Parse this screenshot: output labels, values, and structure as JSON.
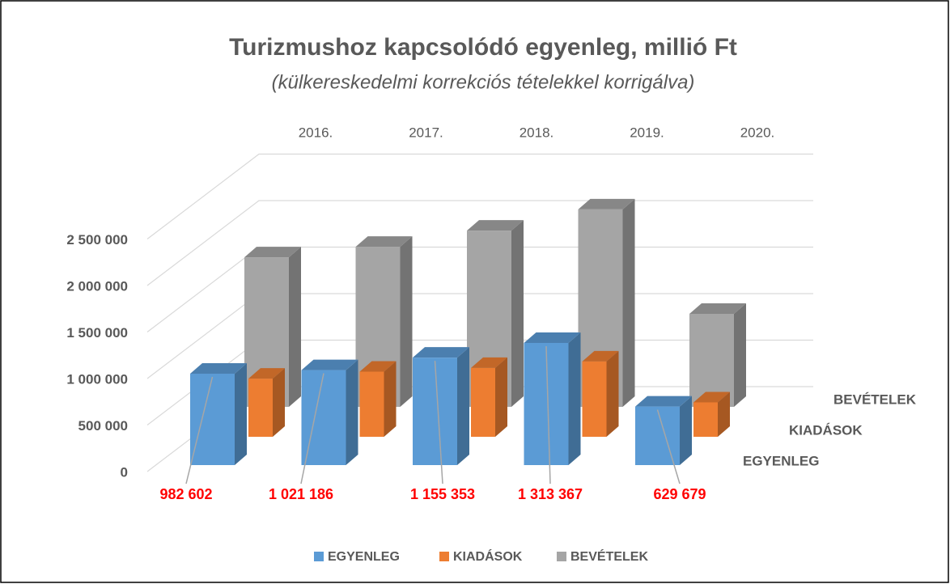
{
  "chart_data": {
    "type": "bar3d",
    "title": "Turizmushoz kapcsolódó egyenleg, millió Ft",
    "subtitle": "(külkereskedelmi korrekciós tételekkel korrigálva)",
    "categories": [
      "2016.",
      "2017.",
      "2018.",
      "2019.",
      "2020."
    ],
    "series": [
      {
        "name": "EGYENLEG",
        "color": "#5b9bd5",
        "values": [
          982602,
          1021186,
          1155353,
          1313367,
          629679
        ],
        "value_labels": [
          "982 602",
          "1 021 186",
          "1 155 353",
          "1 313 367",
          "629 679"
        ]
      },
      {
        "name": "KIADÁSOK",
        "color": "#ed7d31",
        "values": [
          625000,
          700000,
          740000,
          810000,
          370000
        ]
      },
      {
        "name": "BEVÉTELEK",
        "color": "#a5a5a5",
        "values": [
          1608000,
          1721000,
          1895000,
          2123000,
          1000000
        ]
      }
    ],
    "ylim": [
      0,
      2500000
    ],
    "yticks": [
      0,
      {
        "value": 500000,
        "label": "500 000"
      },
      {
        "value": 1000000,
        "label": "1 000 000"
      },
      {
        "value": 1500000,
        "label": "1 500 000"
      },
      {
        "value": 2000000,
        "label": "2 000 000"
      },
      {
        "value": 2500000,
        "label": "2 500 000"
      }
    ],
    "grid": true,
    "legend": "bottom"
  }
}
